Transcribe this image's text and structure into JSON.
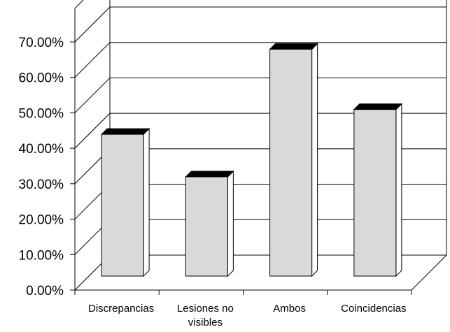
{
  "chart_data": {
    "type": "bar",
    "three_d": true,
    "categories": [
      "Discrepancias",
      "Lesiones no visibles",
      "Ambos",
      "Coincidencias"
    ],
    "category_lines": [
      [
        "Discrepancias"
      ],
      [
        "Lesiones no",
        "visibles"
      ],
      [
        "Ambos"
      ],
      [
        "Coincidencias"
      ]
    ],
    "values": [
      0.4,
      0.28,
      0.64,
      0.47
    ],
    "ylim": [
      0,
      0.7
    ],
    "yticks": [
      0,
      0.1,
      0.2,
      0.3,
      0.4,
      0.5,
      0.6,
      0.7
    ],
    "ytick_labels": [
      "0.00%",
      "10.00%",
      "20.00%",
      "30.00%",
      "40.00%",
      "50.00%",
      "60.00%",
      "70.00%"
    ],
    "grid": true,
    "legend": false,
    "colors": {
      "bar_face": "#d9d9d9",
      "bar_top": "#000000",
      "bar_side": "#ffffff",
      "grid": "#000000",
      "background": "#ffffff"
    }
  }
}
